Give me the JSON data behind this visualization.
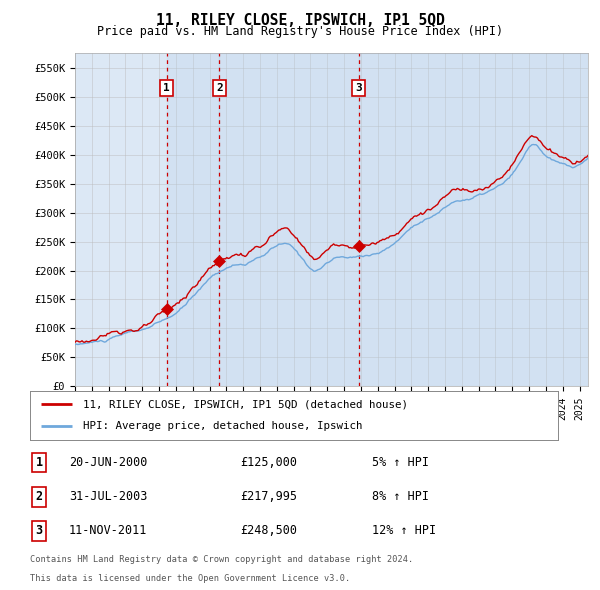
{
  "title": "11, RILEY CLOSE, IPSWICH, IP1 5QD",
  "subtitle": "Price paid vs. HM Land Registry's House Price Index (HPI)",
  "legend_line1": "11, RILEY CLOSE, IPSWICH, IP1 5QD (detached house)",
  "legend_line2": "HPI: Average price, detached house, Ipswich",
  "footer1": "Contains HM Land Registry data © Crown copyright and database right 2024.",
  "footer2": "This data is licensed under the Open Government Licence v3.0.",
  "sales": [
    {
      "label": "1",
      "date": "20-JUN-2000",
      "price": 125000,
      "pct": "5%",
      "direction": "↑",
      "x_year": 2000.46
    },
    {
      "label": "2",
      "date": "31-JUL-2003",
      "price": 217995,
      "pct": "8%",
      "direction": "↑",
      "x_year": 2003.58
    },
    {
      "label": "3",
      "date": "11-NOV-2011",
      "price": 248500,
      "pct": "12%",
      "direction": "↑",
      "x_year": 2011.86
    }
  ],
  "ylim": [
    0,
    575000
  ],
  "xlim_start": 1995.0,
  "xlim_end": 2025.5,
  "yticks": [
    0,
    50000,
    100000,
    150000,
    200000,
    250000,
    300000,
    350000,
    400000,
    450000,
    500000,
    550000
  ],
  "ytick_labels": [
    "£0",
    "£50K",
    "£100K",
    "£150K",
    "£200K",
    "£250K",
    "£300K",
    "£350K",
    "£400K",
    "£450K",
    "£500K",
    "£550K"
  ],
  "hpi_color": "#6fa8dc",
  "price_color": "#cc0000",
  "dashed_color": "#cc0000",
  "marker_color": "#cc0000",
  "background_color": "#dce8f5",
  "grid_color": "#bbbbbb",
  "shade_color": "#b8d0ea"
}
